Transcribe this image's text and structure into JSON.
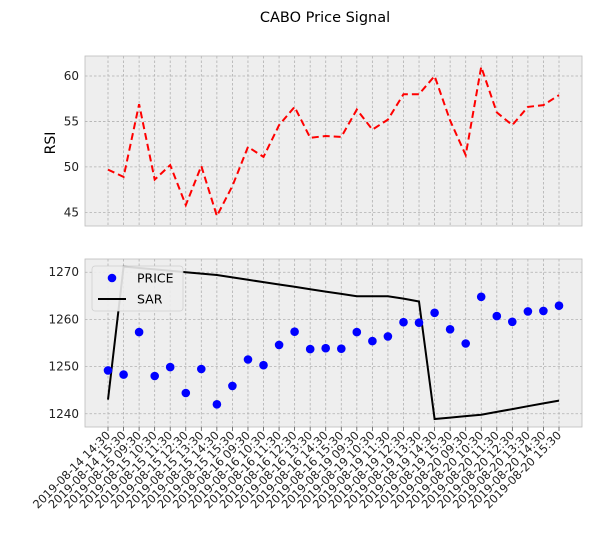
{
  "chart_data": {
    "title": "CABO Price Signal",
    "x": [
      "2019-08-14 14:30",
      "2019-08-14 15:30",
      "2019-08-15 09:30",
      "2019-08-15 10:30",
      "2019-08-15 11:30",
      "2019-08-15 12:30",
      "2019-08-15 13:30",
      "2019-08-15 14:30",
      "2019-08-15 15:30",
      "2019-08-16 09:30",
      "2019-08-16 10:30",
      "2019-08-16 11:30",
      "2019-08-16 12:30",
      "2019-08-16 13:30",
      "2019-08-16 14:30",
      "2019-08-16 15:30",
      "2019-08-19 09:30",
      "2019-08-19 10:30",
      "2019-08-19 11:30",
      "2019-08-19 12:30",
      "2019-08-19 13:30",
      "2019-08-19 14:30",
      "2019-08-19 15:30",
      "2019-08-20 09:30",
      "2019-08-20 10:30",
      "2019-08-20 11:30",
      "2019-08-20 12:30",
      "2019-08-20 13:30",
      "2019-08-20 14:30",
      "2019-08-20 15:30"
    ],
    "panels": [
      {
        "type": "line",
        "ylabel": "RSI",
        "yticks": [
          45,
          50,
          55,
          60
        ],
        "ylim": [
          43.5,
          62.2
        ],
        "grid": true,
        "series": [
          {
            "values": [
              49.7,
              48.9,
              56.9,
              48.6,
              50.2,
              45.8,
              50.1,
              44.6,
              47.9,
              52.2,
              51.1,
              54.6,
              56.6,
              53.2,
              53.4,
              53.3,
              56.3,
              54.1,
              55.2,
              58.0,
              58.0,
              60.0,
              55.1,
              51.3,
              61.0,
              56.0,
              54.6,
              56.6,
              56.8,
              57.9
            ],
            "color": "#ff0000",
            "style": "dashed"
          }
        ]
      },
      {
        "type": "line+scatter",
        "yticks": [
          1240,
          1250,
          1260,
          1270
        ],
        "ylim": [
          1237.2,
          1272.8
        ],
        "grid": true,
        "legend": "top-left",
        "series": [
          {
            "name": "PRICE",
            "kind": "scatter",
            "color": "#0000ff",
            "values": [
              1249.2,
              1248.3,
              1257.3,
              1248.0,
              1249.9,
              1244.4,
              1249.5,
              1242.0,
              1245.9,
              1251.5,
              1250.3,
              1254.6,
              1257.4,
              1253.7,
              1253.9,
              1253.8,
              1257.3,
              1255.4,
              1256.4,
              1259.4,
              1259.3,
              1261.4,
              1257.9,
              1254.9,
              1264.8,
              1260.7,
              1259.5,
              1261.7,
              1261.8,
              1262.9
            ]
          },
          {
            "name": "SAR",
            "kind": "line",
            "color": "#000000",
            "values": [
              1243.0,
              1271.2,
              1270.9,
              1270.6,
              1270.3,
              1270.0,
              1269.7,
              1269.4,
              1268.9,
              1268.4,
              1267.9,
              1267.4,
              1266.9,
              1266.4,
              1265.9,
              1265.4,
              1264.9,
              1264.9,
              1264.9,
              1264.4,
              1263.8,
              1238.9,
              1239.2,
              1239.5,
              1239.8,
              1240.4,
              1241.0,
              1241.6,
              1242.2,
              1242.8
            ]
          }
        ]
      }
    ]
  }
}
